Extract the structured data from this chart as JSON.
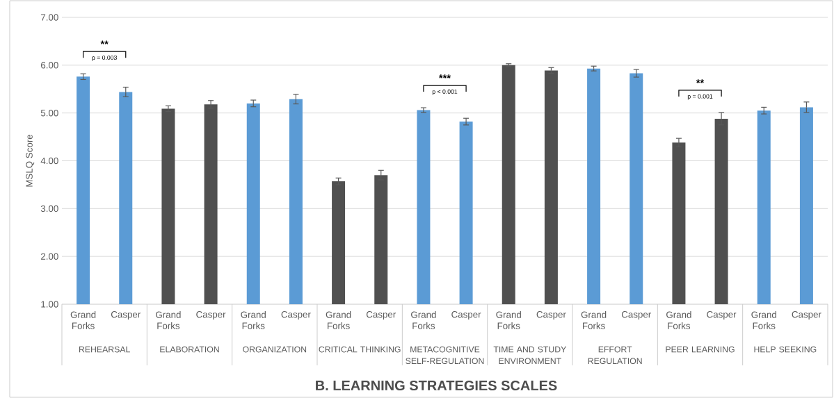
{
  "chart_data": {
    "type": "bar",
    "title": "B. LEARNING STRATEGIES SCALES",
    "ylabel": "MSLQ Score",
    "categories": [
      "Grand Forks",
      "Casper",
      "Grand Forks",
      "Casper",
      "Grand Forks",
      "Casper",
      "Grand Forks",
      "Casper",
      "Grand Forks",
      "Casper",
      "Grand Forks",
      "Casper",
      "Grand Forks",
      "Casper",
      "Grand Forks",
      "Casper",
      "Grand Forks",
      "Casper"
    ],
    "values": [
      5.76,
      5.44,
      5.09,
      5.18,
      5.2,
      5.29,
      3.57,
      3.7,
      5.06,
      4.82,
      6.0,
      5.89,
      5.93,
      5.83,
      4.38,
      4.88,
      5.05,
      5.12
    ],
    "errors": [
      0.06,
      0.1,
      0.06,
      0.08,
      0.07,
      0.1,
      0.07,
      0.1,
      0.05,
      0.07,
      0.03,
      0.06,
      0.05,
      0.08,
      0.09,
      0.13,
      0.07,
      0.11
    ],
    "colors": [
      "#5b9bd5",
      "#5b9bd5",
      "#505050",
      "#505050",
      "#5b9bd5",
      "#5b9bd5",
      "#505050",
      "#505050",
      "#5b9bd5",
      "#5b9bd5",
      "#505050",
      "#505050",
      "#5b9bd5",
      "#5b9bd5",
      "#505050",
      "#505050",
      "#5b9bd5",
      "#5b9bd5"
    ],
    "ylim": [
      1,
      7
    ],
    "yticks": [
      {
        "value": 1,
        "label": "1.00"
      },
      {
        "value": 2,
        "label": "2.00"
      },
      {
        "value": 3,
        "label": "3.00"
      },
      {
        "value": 4,
        "label": "4.00"
      },
      {
        "value": 5,
        "label": "5.00"
      },
      {
        "value": 6,
        "label": "6.00"
      },
      {
        "value": 7,
        "label": "7.00"
      }
    ],
    "grid": "y",
    "annotations": [
      "REHEARSAL",
      "ELABORATION",
      "ORGANIZATION",
      "CRITICAL THINKING",
      "METACOGNITIVE SELF-REGULATION",
      "TIME AND STUDY ENVIRONMENT",
      "EFFORT REGULATION",
      "PEER LEARNING",
      "HELP SEEKING",
      "**",
      "p = 0.003",
      "***",
      "p < 0.001",
      "**",
      "p = 0.001"
    ]
  }
}
